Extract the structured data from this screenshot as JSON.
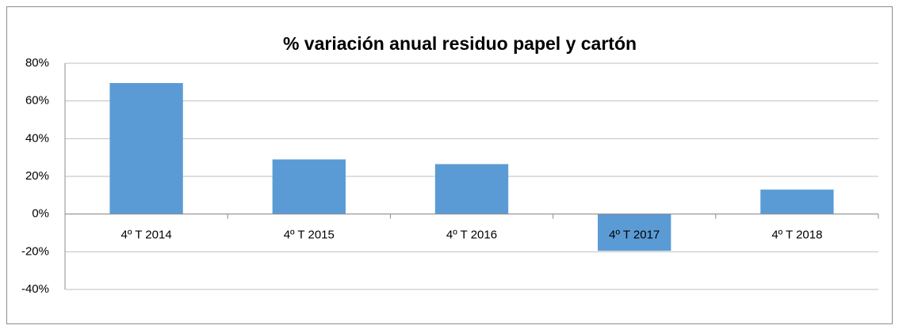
{
  "chart_data": {
    "type": "bar",
    "title": "% variación anual residuo papel y cartón",
    "categories": [
      "4º T 2014",
      "4º T 2015",
      "4º T 2016",
      "4º T 2017",
      "4º T 2018"
    ],
    "values": [
      69.5,
      29,
      26.5,
      -19.5,
      13
    ],
    "color": "#5b9bd5",
    "ylim": [
      -40,
      80
    ],
    "yticks": [
      {
        "value": -40,
        "label": "-40%"
      },
      {
        "value": -20,
        "label": "-20%"
      },
      {
        "value": 0,
        "label": "0%"
      },
      {
        "value": 20,
        "label": "20%"
      },
      {
        "value": 40,
        "label": "40%"
      },
      {
        "value": 60,
        "label": "60%"
      },
      {
        "value": 80,
        "label": "80%"
      }
    ],
    "grid": true
  }
}
